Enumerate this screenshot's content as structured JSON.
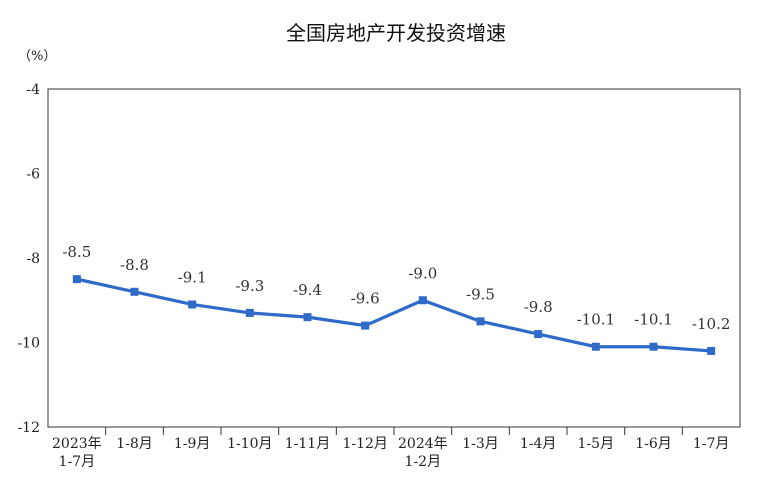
{
  "chart_data": {
    "type": "line",
    "title": "全国房地产开发投资增速",
    "unit_label": "（%）",
    "ylim": [
      -12,
      -4
    ],
    "yticks": [
      -4,
      -6,
      -8,
      -10,
      -12
    ],
    "grid": false,
    "legend": "none",
    "categories": [
      [
        "2023年",
        "1-7月"
      ],
      [
        "1-8月"
      ],
      [
        "1-9月"
      ],
      [
        "1-10月"
      ],
      [
        "1-11月"
      ],
      [
        "1-12月"
      ],
      [
        "2024年",
        "1-2月"
      ],
      [
        "1-3月"
      ],
      [
        "1-4月"
      ],
      [
        "1-5月"
      ],
      [
        "1-6月"
      ],
      [
        "1-7月"
      ]
    ],
    "series": [
      {
        "values": [
          -8.5,
          -8.8,
          -9.1,
          -9.3,
          -9.4,
          -9.6,
          -9.0,
          -9.5,
          -9.8,
          -10.1,
          -10.1,
          -10.2
        ],
        "labels": [
          "-8.5",
          "-8.8",
          "-9.1",
          "-9.3",
          "-9.4",
          "-9.6",
          "-9.0",
          "-9.5",
          "-9.8",
          "-10.1",
          "-10.1",
          "-10.2"
        ],
        "color": "#2f6ac8"
      }
    ]
  }
}
